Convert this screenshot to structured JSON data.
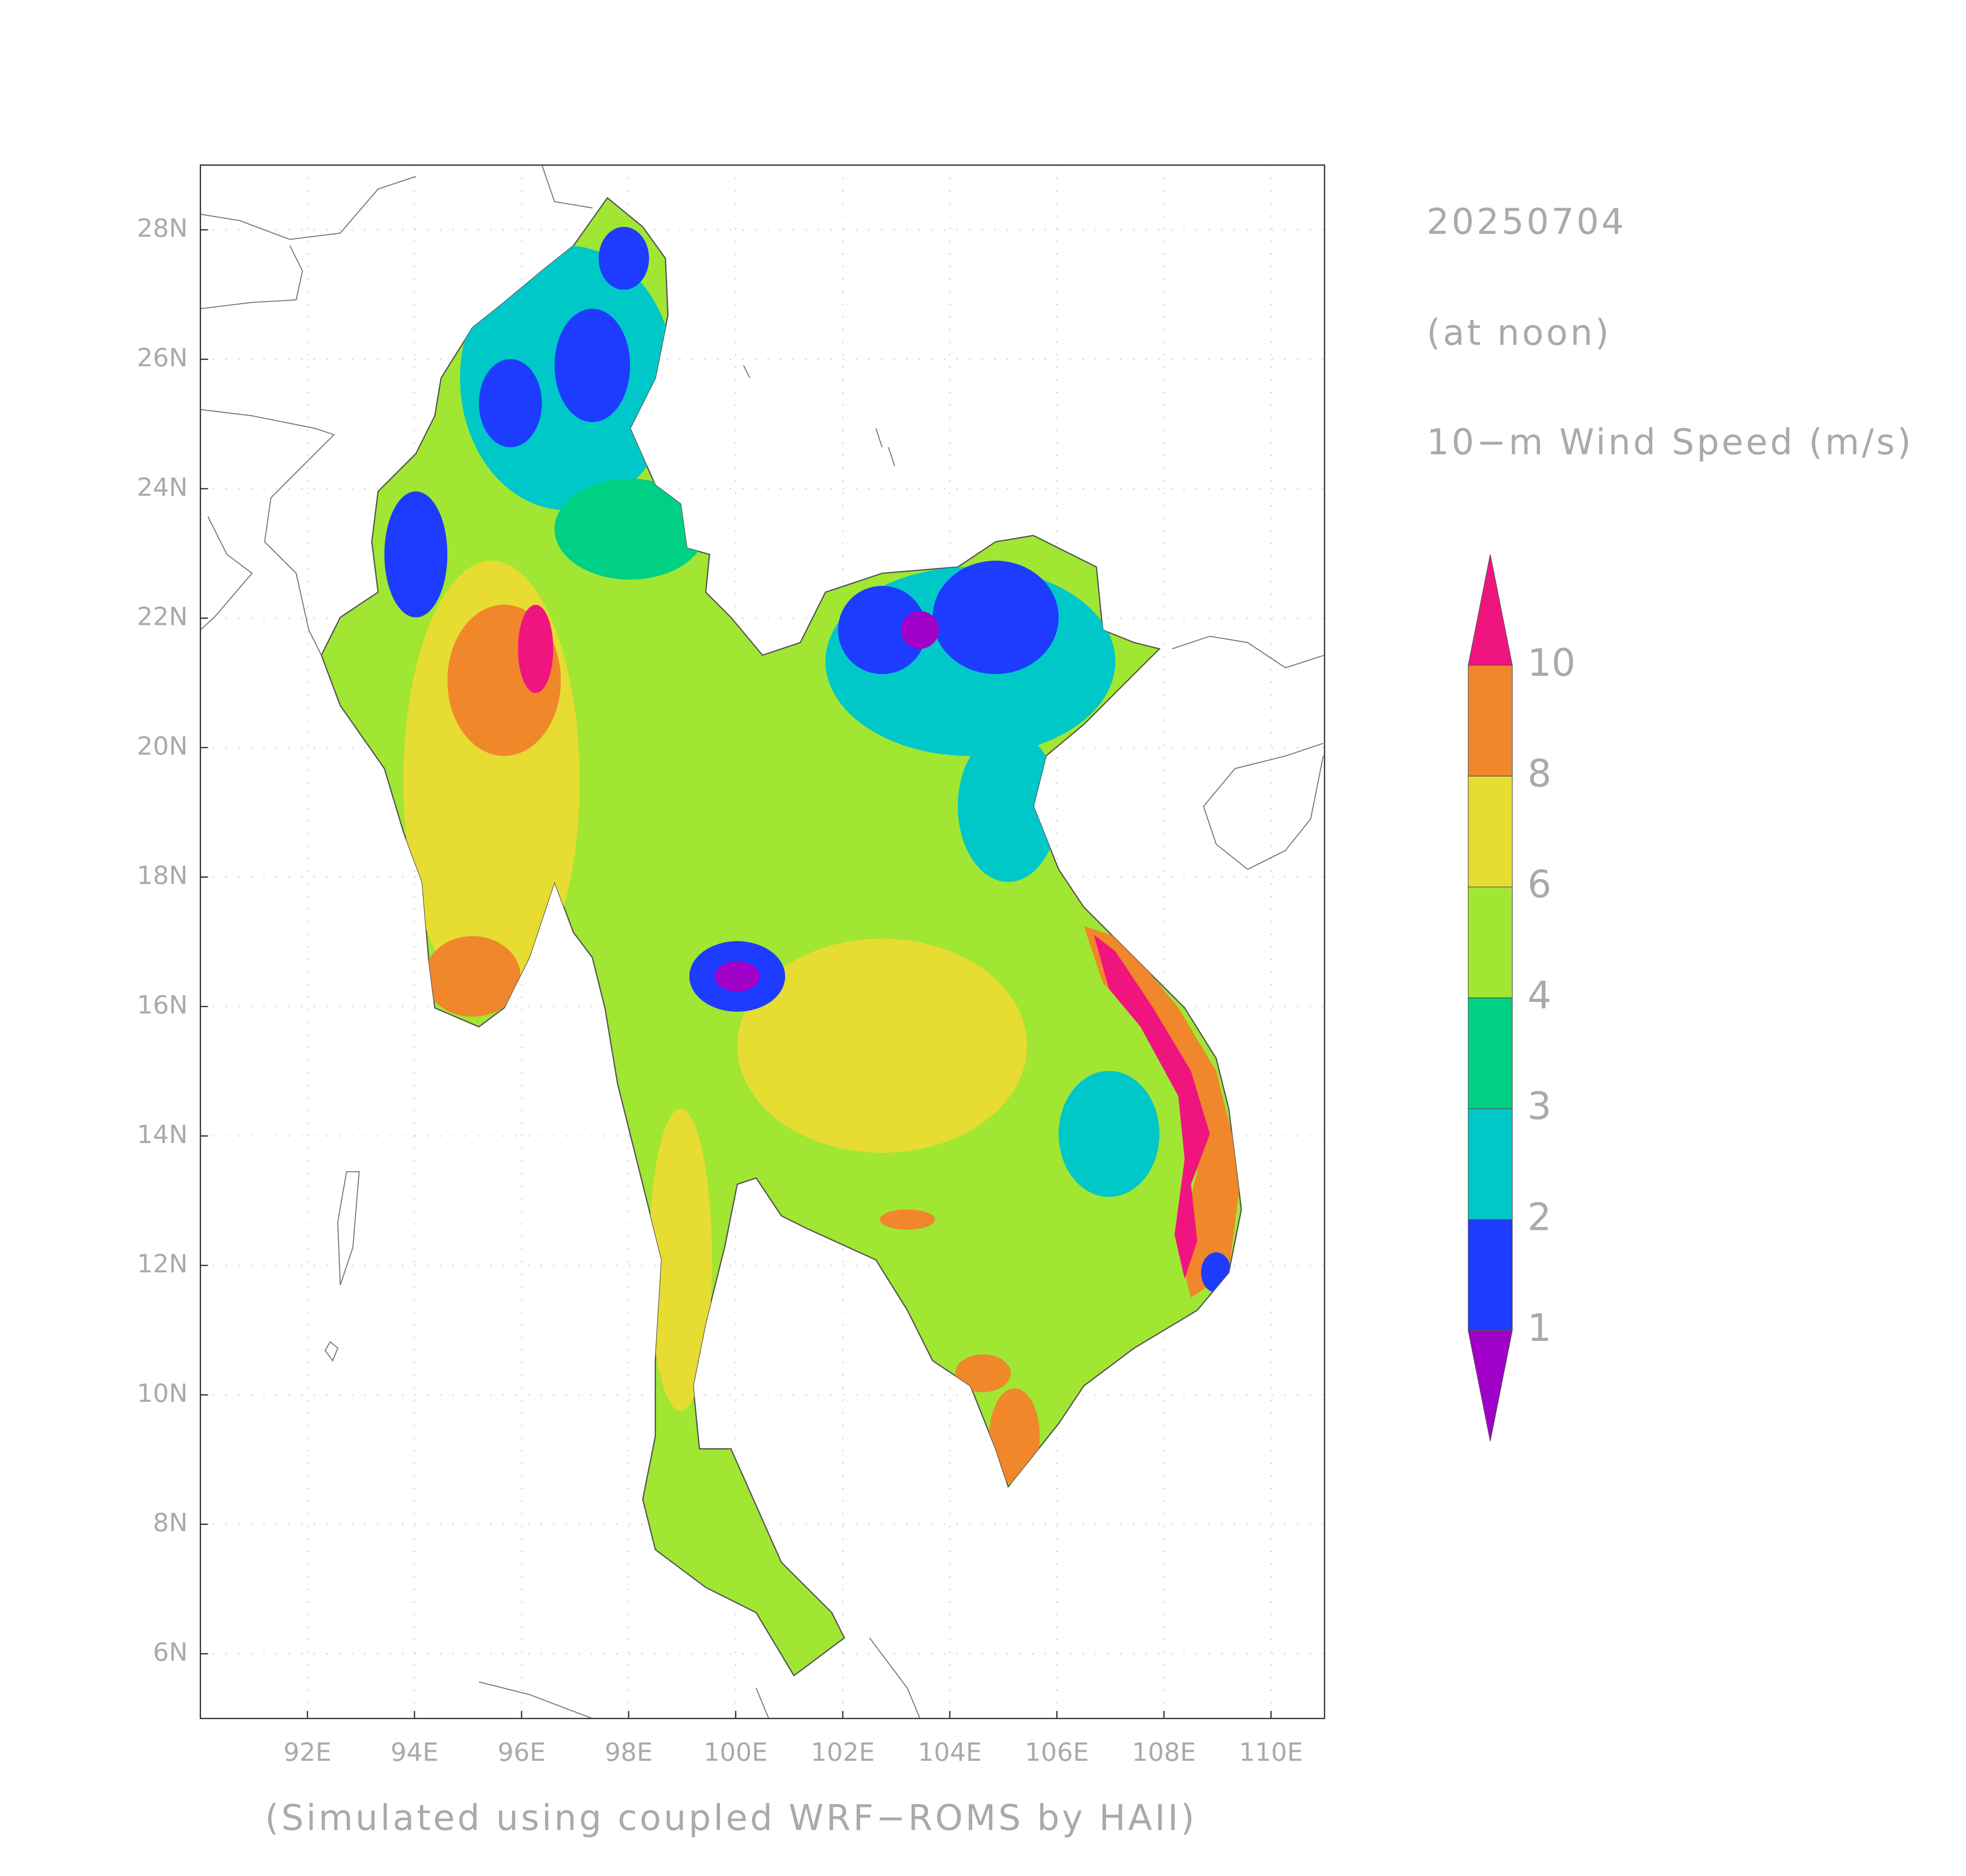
{
  "date": "20250704",
  "time_note": "(at noon)",
  "variable": "10−m Wind Speed (m/s)",
  "footer": "(Simulated using coupled WRF−ROMS by HAII)",
  "map": {
    "xlim": [
      90,
      111
    ],
    "ylim": [
      5,
      29
    ],
    "xticks": [
      {
        "value": 92,
        "label": "92E"
      },
      {
        "value": 94,
        "label": "94E"
      },
      {
        "value": 96,
        "label": "96E"
      },
      {
        "value": 98,
        "label": "98E"
      },
      {
        "value": 100,
        "label": "100E"
      },
      {
        "value": 102,
        "label": "102E"
      },
      {
        "value": 104,
        "label": "104E"
      },
      {
        "value": 106,
        "label": "106E"
      },
      {
        "value": 108,
        "label": "108E"
      },
      {
        "value": 110,
        "label": "110E"
      }
    ],
    "yticks": [
      {
        "value": 6,
        "label": "6N"
      },
      {
        "value": 8,
        "label": "8N"
      },
      {
        "value": 10,
        "label": "10N"
      },
      {
        "value": 12,
        "label": "12N"
      },
      {
        "value": 14,
        "label": "14N"
      },
      {
        "value": 16,
        "label": "16N"
      },
      {
        "value": 18,
        "label": "18N"
      },
      {
        "value": 20,
        "label": "20N"
      },
      {
        "value": 22,
        "label": "22N"
      },
      {
        "value": 24,
        "label": "24N"
      },
      {
        "value": 26,
        "label": "26N"
      },
      {
        "value": 28,
        "label": "28N"
      }
    ],
    "grid": true
  },
  "colorbar": {
    "levels": [
      1,
      2,
      3,
      4,
      6,
      8,
      10
    ],
    "colors": [
      "#a000c8",
      "#1e3cff",
      "#00c8c8",
      "#00d084",
      "#a0e632",
      "#e6dc32",
      "#f0872a",
      "#f0147f"
    ]
  }
}
